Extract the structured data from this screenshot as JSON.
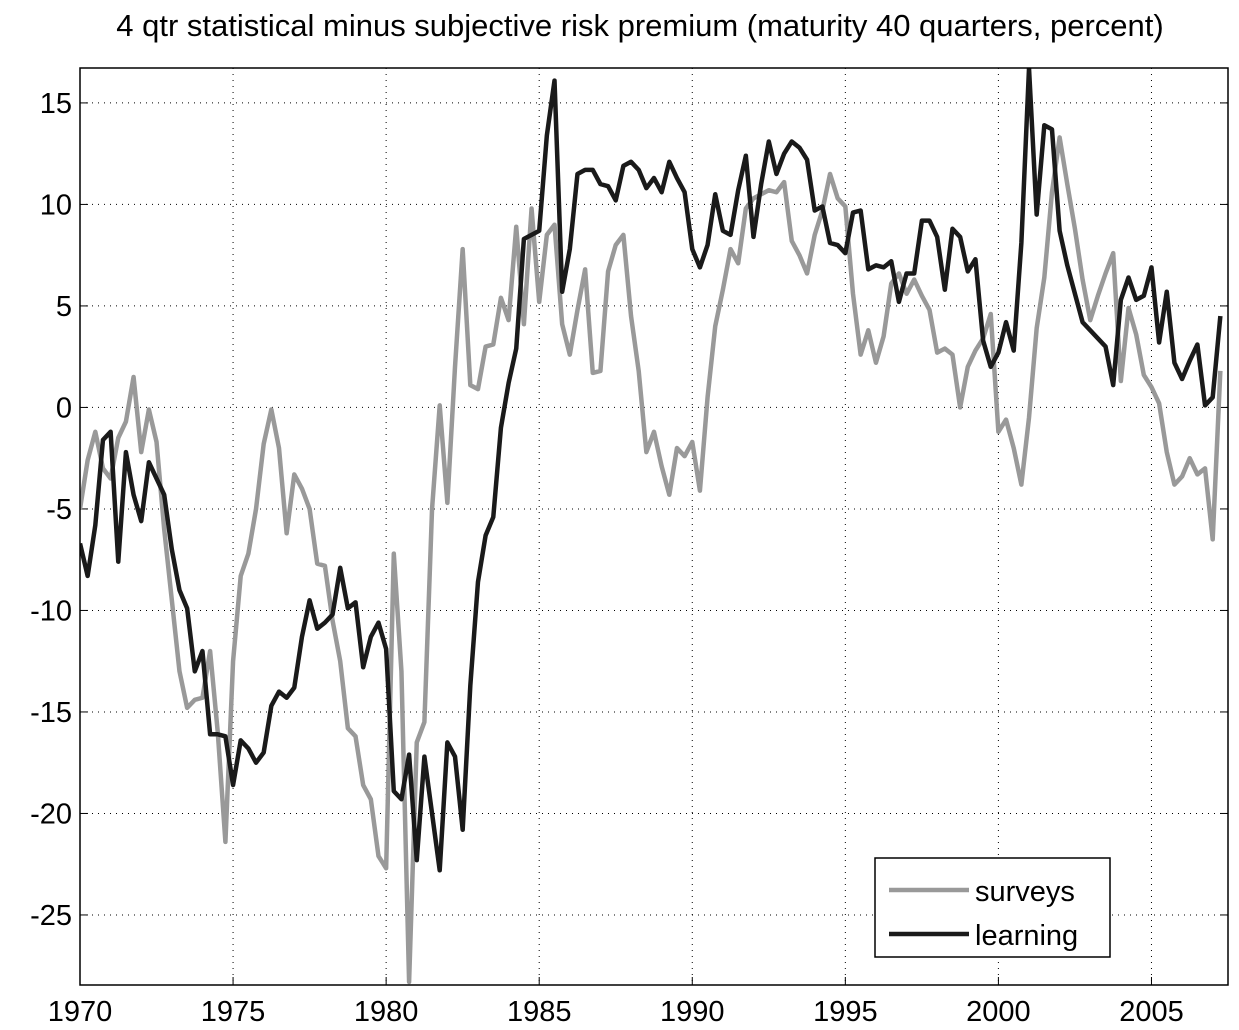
{
  "chart_data": {
    "type": "line",
    "title": "4 qtr statistical minus subjective risk premium (maturity 40 quarters, percent)",
    "x": [
      1970,
      1970.25,
      1970.5,
      1970.75,
      1971,
      1971.25,
      1971.5,
      1971.75,
      1972,
      1972.25,
      1972.5,
      1972.75,
      1973,
      1973.25,
      1973.5,
      1973.75,
      1974,
      1974.25,
      1974.5,
      1974.75,
      1975,
      1975.25,
      1975.5,
      1975.75,
      1976,
      1976.25,
      1976.5,
      1976.75,
      1977,
      1977.25,
      1977.5,
      1977.75,
      1978,
      1978.25,
      1978.5,
      1978.75,
      1979,
      1979.25,
      1979.5,
      1979.75,
      1980,
      1980.25,
      1980.5,
      1980.75,
      1981,
      1981.25,
      1981.5,
      1981.75,
      1982,
      1982.25,
      1982.5,
      1982.75,
      1983,
      1983.25,
      1983.5,
      1983.75,
      1984,
      1984.25,
      1984.5,
      1984.75,
      1985,
      1985.25,
      1985.5,
      1985.75,
      1986,
      1986.25,
      1986.5,
      1986.75,
      1987,
      1987.25,
      1987.5,
      1987.75,
      1988,
      1988.25,
      1988.5,
      1988.75,
      1989,
      1989.25,
      1989.5,
      1989.75,
      1990,
      1990.25,
      1990.5,
      1990.75,
      1991,
      1991.25,
      1991.5,
      1991.75,
      1992,
      1992.25,
      1992.5,
      1992.75,
      1993,
      1993.25,
      1993.5,
      1993.75,
      1994,
      1994.25,
      1994.5,
      1994.75,
      1995,
      1995.25,
      1995.5,
      1995.75,
      1996,
      1996.25,
      1996.5,
      1996.75,
      1997,
      1997.25,
      1997.5,
      1997.75,
      1998,
      1998.25,
      1998.5,
      1998.75,
      1999,
      1999.25,
      1999.5,
      1999.75,
      2000,
      2000.25,
      2000.5,
      2000.75,
      2001,
      2001.25,
      2001.5,
      2001.75,
      2002,
      2002.25,
      2002.5,
      2002.75,
      2003,
      2003.25,
      2003.5,
      2003.75,
      2004,
      2004.25,
      2004.5,
      2004.75,
      2005,
      2005.25,
      2005.5,
      2005.75,
      2006,
      2006.25,
      2006.5,
      2006.75,
      2007,
      2007.25
    ],
    "series": [
      {
        "name": "surveys",
        "color": "#999999",
        "values": [
          -5.0,
          -2.6,
          -1.2,
          -3.0,
          -3.5,
          -1.5,
          -0.7,
          1.5,
          -2.2,
          -0.1,
          -1.7,
          -6.0,
          -9.5,
          -13.0,
          -14.8,
          -14.4,
          -14.3,
          -12.0,
          -16.0,
          -21.4,
          -12.5,
          -8.3,
          -7.2,
          -5.0,
          -1.8,
          -0.1,
          -2.0,
          -6.2,
          -3.3,
          -4.0,
          -5.0,
          -7.7,
          -7.8,
          -10.5,
          -12.5,
          -15.8,
          -16.2,
          -18.6,
          -19.3,
          -22.1,
          -22.7,
          -7.2,
          -13.0,
          -28.3,
          -16.5,
          -15.5,
          -5.0,
          0.1,
          -4.7,
          2.0,
          7.8,
          1.1,
          0.9,
          3.0,
          3.1,
          5.4,
          4.3,
          8.9,
          4.1,
          9.8,
          5.2,
          8.5,
          9.0,
          4.1,
          2.6,
          4.8,
          6.8,
          1.7,
          1.8,
          6.7,
          8.0,
          8.5,
          4.5,
          1.8,
          -2.2,
          -1.2,
          -2.9,
          -4.3,
          -2.0,
          -2.4,
          -1.7,
          -4.1,
          0.5,
          4.0,
          5.8,
          7.8,
          7.1,
          9.8,
          10.3,
          10.5,
          10.7,
          10.6,
          11.1,
          8.2,
          7.5,
          6.6,
          8.5,
          9.7,
          11.5,
          10.3,
          9.9,
          5.6,
          2.6,
          3.8,
          2.2,
          3.5,
          6.1,
          6.6,
          5.6,
          6.3,
          5.5,
          4.8,
          2.7,
          2.9,
          2.6,
          0.0,
          2.0,
          2.8,
          3.4,
          4.6,
          -1.2,
          -0.6,
          -2.0,
          -3.8,
          -0.5,
          3.9,
          6.4,
          10.6,
          13.3,
          11.0,
          8.8,
          6.3,
          4.3,
          5.5,
          6.6,
          7.6,
          1.3,
          4.9,
          3.6,
          1.6,
          1.0,
          0.2,
          -2.2,
          -3.8,
          -3.4,
          -2.5,
          -3.3,
          -3.0,
          -6.5,
          1.8
        ]
      },
      {
        "name": "learning",
        "color": "#1a1a1a",
        "values": [
          -6.7,
          -8.3,
          -5.8,
          -1.6,
          -1.2,
          -7.6,
          -2.2,
          -4.3,
          -5.6,
          -2.7,
          -3.5,
          -4.3,
          -7.0,
          -9.0,
          -9.9,
          -13.0,
          -12.0,
          -16.1,
          -16.1,
          -16.2,
          -18.6,
          -16.4,
          -16.8,
          -17.5,
          -17.0,
          -14.7,
          -14.0,
          -14.3,
          -13.8,
          -11.3,
          -9.5,
          -10.9,
          -10.6,
          -10.2,
          -7.9,
          -9.9,
          -9.6,
          -12.8,
          -11.3,
          -10.6,
          -11.9,
          -18.9,
          -19.3,
          -17.1,
          -22.3,
          -17.2,
          -20.0,
          -22.8,
          -16.5,
          -17.2,
          -20.8,
          -13.7,
          -8.6,
          -6.3,
          -5.4,
          -1.0,
          1.2,
          2.9,
          8.3,
          8.5,
          8.7,
          13.4,
          16.1,
          5.7,
          7.8,
          11.5,
          11.7,
          11.7,
          11.0,
          10.9,
          10.2,
          11.9,
          12.1,
          11.7,
          10.8,
          11.3,
          10.6,
          12.1,
          11.3,
          10.6,
          7.8,
          6.9,
          8.0,
          10.5,
          8.7,
          8.5,
          10.7,
          12.4,
          8.4,
          11.0,
          13.1,
          11.5,
          12.5,
          13.1,
          12.8,
          12.2,
          9.7,
          9.9,
          8.1,
          8.0,
          7.6,
          9.6,
          9.7,
          6.8,
          7.0,
          6.9,
          7.2,
          5.2,
          6.6,
          6.6,
          9.2,
          9.2,
          8.4,
          5.8,
          8.8,
          8.4,
          6.7,
          7.3,
          3.3,
          2.0,
          2.7,
          4.2,
          2.8,
          8.1,
          16.7,
          9.5,
          13.9,
          13.7,
          8.7,
          7.0,
          5.6,
          4.2,
          3.8,
          3.4,
          3.0,
          1.1,
          5.3,
          6.4,
          5.3,
          5.5,
          6.9,
          3.2,
          5.7,
          2.2,
          1.4,
          2.3,
          3.1,
          0.1,
          0.5,
          4.5
        ]
      }
    ],
    "xlim": [
      1970,
      2007.5
    ],
    "xticks": [
      1970,
      1975,
      1980,
      1985,
      1990,
      1995,
      2000,
      2005
    ],
    "ylim": [
      -28.45,
      16.72
    ],
    "yticks": [
      -25,
      -20,
      -15,
      -10,
      -5,
      0,
      5,
      10,
      15
    ],
    "grid": true,
    "legend": "lower right"
  }
}
